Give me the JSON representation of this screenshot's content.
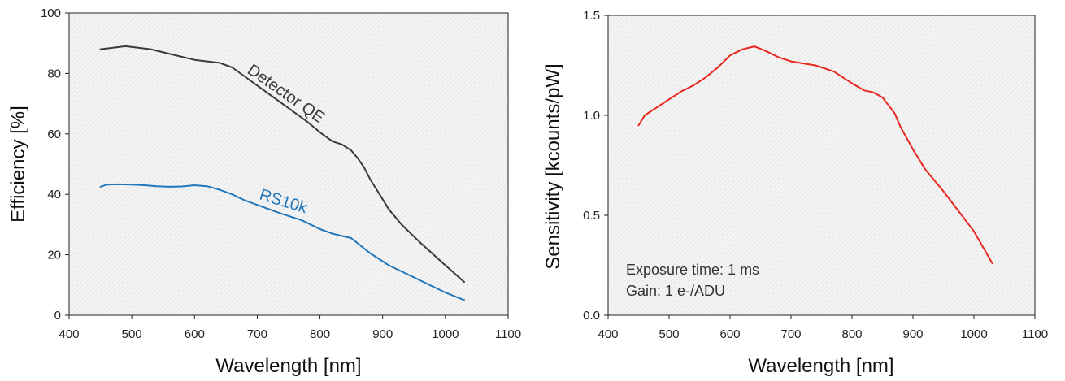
{
  "chart_data": [
    {
      "type": "line",
      "xlabel": "Wavelength [nm]",
      "ylabel": "Efficiency [%]",
      "xlim": [
        400,
        1100
      ],
      "ylim": [
        0,
        100
      ],
      "xticks": [
        400,
        500,
        600,
        700,
        800,
        900,
        1000,
        1100
      ],
      "yticks": [
        0,
        20,
        40,
        60,
        80,
        100
      ],
      "grid": false,
      "background": "hatched light gray",
      "series": [
        {
          "name": "Detector QE",
          "color": "#3a3a3a",
          "x": [
            450,
            470,
            490,
            510,
            530,
            550,
            570,
            600,
            640,
            660,
            700,
            740,
            780,
            800,
            820,
            835,
            850,
            860,
            870,
            880,
            895,
            910,
            930,
            960,
            1000,
            1030
          ],
          "y": [
            88,
            88.5,
            89,
            88.5,
            88,
            87,
            86,
            84.5,
            83.5,
            82,
            76,
            70,
            64,
            60.5,
            57.5,
            56.5,
            54.5,
            52,
            49,
            45,
            40,
            35,
            30,
            24,
            16.5,
            11
          ]
        },
        {
          "name": "RS10k",
          "color": "#2277bb",
          "x": [
            450,
            460,
            480,
            500,
            520,
            540,
            560,
            580,
            600,
            620,
            640,
            660,
            680,
            700,
            740,
            770,
            800,
            820,
            850,
            880,
            910,
            950,
            1000,
            1030
          ],
          "y": [
            42.5,
            43.2,
            43.3,
            43.2,
            43.0,
            42.7,
            42.5,
            42.6,
            43.0,
            42.7,
            41.5,
            40.0,
            38.0,
            36.5,
            33.5,
            31.5,
            28.5,
            27.0,
            25.5,
            20.5,
            16.5,
            12.5,
            7.5,
            5.0
          ]
        }
      ]
    },
    {
      "type": "line",
      "xlabel": "Wavelength [nm]",
      "ylabel": "Sensitivity [kcounts/pW]",
      "xlim": [
        400,
        1100
      ],
      "ylim": [
        0.0,
        1.5
      ],
      "xticks": [
        400,
        500,
        600,
        700,
        800,
        900,
        1000,
        1100
      ],
      "yticks": [
        0.0,
        0.5,
        1.0,
        1.5
      ],
      "ytick_labels": [
        "0.0",
        "0.5",
        "1.0",
        "1.5"
      ],
      "grid": false,
      "background": "hatched light gray",
      "annotations": [
        "Exposure time: 1 ms",
        "Gain: 1 e-/ADU"
      ],
      "series": [
        {
          "color": "#e8281e",
          "x": [
            450,
            460,
            480,
            500,
            520,
            540,
            560,
            580,
            600,
            620,
            640,
            660,
            680,
            700,
            740,
            770,
            800,
            820,
            835,
            850,
            860,
            870,
            880,
            900,
            920,
            950,
            1000,
            1030
          ],
          "y": [
            0.95,
            1.0,
            1.04,
            1.08,
            1.12,
            1.15,
            1.19,
            1.24,
            1.3,
            1.33,
            1.345,
            1.32,
            1.29,
            1.27,
            1.25,
            1.22,
            1.16,
            1.125,
            1.115,
            1.09,
            1.05,
            1.01,
            0.94,
            0.83,
            0.73,
            0.62,
            0.42,
            0.26
          ]
        }
      ]
    }
  ]
}
